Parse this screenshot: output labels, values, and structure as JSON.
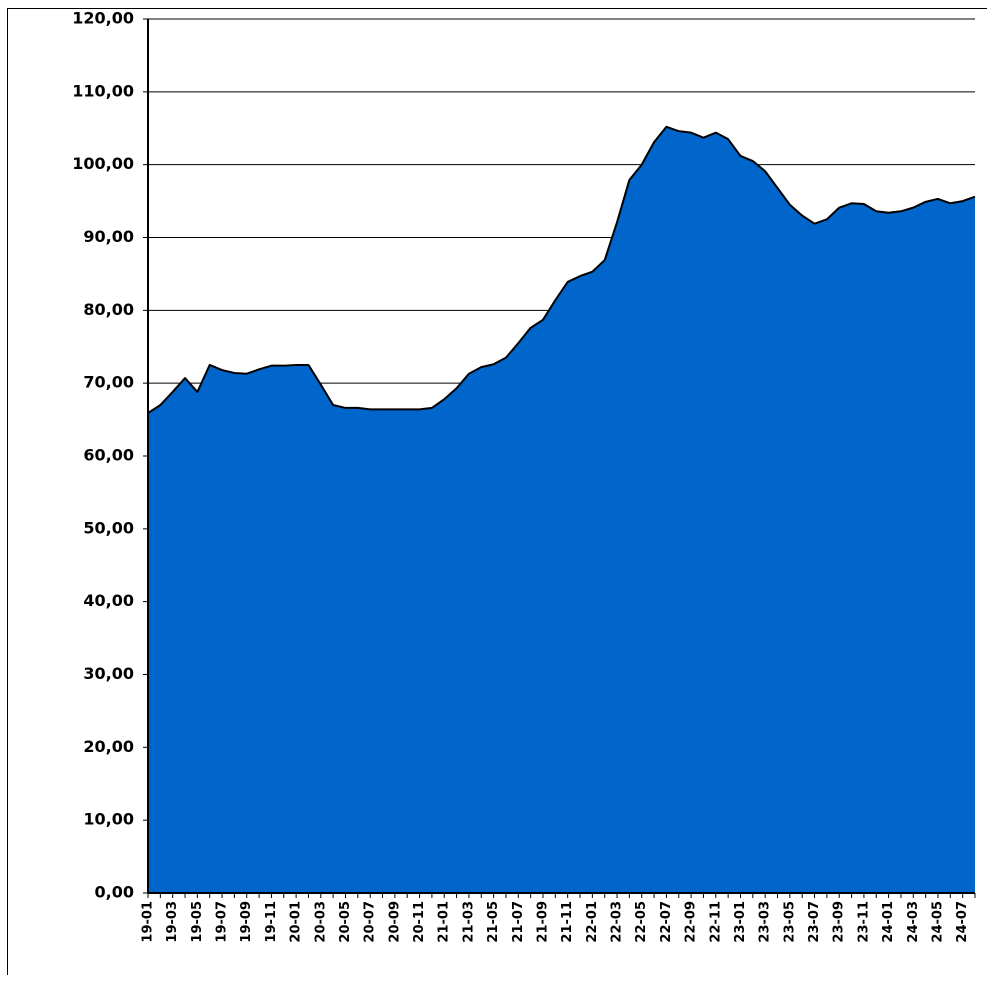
{
  "chart_data": {
    "type": "area",
    "categories": [
      "19-01",
      null,
      "19-03",
      null,
      "19-05",
      null,
      "19-07",
      null,
      "19-09",
      null,
      "19-11",
      null,
      "20-01",
      null,
      "20-03",
      null,
      "20-05",
      null,
      "20-07",
      null,
      "20-09",
      null,
      "20-11",
      null,
      "21-01",
      null,
      "21-03",
      null,
      "21-05",
      null,
      "21-07",
      null,
      "21-09",
      null,
      "21-11",
      null,
      "22-01",
      null,
      "22-03",
      null,
      "22-05",
      null,
      "22-07",
      null,
      "22-09",
      null,
      "22-11",
      null,
      "23-01",
      null,
      "23-03",
      null,
      "23-05",
      null,
      "23-07",
      null,
      "23-09",
      null,
      "23-11",
      null,
      "24-01",
      null,
      "24-03",
      null,
      "24-05",
      null,
      "24-07",
      null
    ],
    "values": [
      65.9,
      67.0,
      68.8,
      70.7,
      68.8,
      72.5,
      71.8,
      71.4,
      71.3,
      71.9,
      72.4,
      72.4,
      72.5,
      72.5,
      69.8,
      67.0,
      66.6,
      66.6,
      66.4,
      66.4,
      66.4,
      66.4,
      66.4,
      66.6,
      67.8,
      69.3,
      71.3,
      72.2,
      72.6,
      73.5,
      75.5,
      77.6,
      78.7,
      81.4,
      83.9,
      84.7,
      85.3,
      86.9,
      92.1,
      97.9,
      100.0,
      103.1,
      105.2,
      104.6,
      104.4,
      103.7,
      104.4,
      103.5,
      101.2,
      100.5,
      99.1,
      96.8,
      94.5,
      93.0,
      91.9,
      92.5,
      94.1,
      94.7,
      94.6,
      93.6,
      93.4,
      93.6,
      94.1,
      94.9,
      95.3,
      94.7,
      95.0,
      95.6
    ],
    "color": "#0066cc",
    "ylim": [
      0,
      120
    ],
    "yticks": [
      {
        "value": 0,
        "label": "0,00"
      },
      {
        "value": 10,
        "label": "10,00"
      },
      {
        "value": 20,
        "label": "20,00"
      },
      {
        "value": 30,
        "label": "30,00"
      },
      {
        "value": 40,
        "label": "40,00"
      },
      {
        "value": 50,
        "label": "50,00"
      },
      {
        "value": 60,
        "label": "60,00"
      },
      {
        "value": 70,
        "label": "70,00"
      },
      {
        "value": 80,
        "label": "80,00"
      },
      {
        "value": 90,
        "label": "90,00"
      },
      {
        "value": 100,
        "label": "100,00"
      },
      {
        "value": 110,
        "label": "110,00"
      },
      {
        "value": 120,
        "label": "120,00"
      }
    ],
    "grid": true
  }
}
